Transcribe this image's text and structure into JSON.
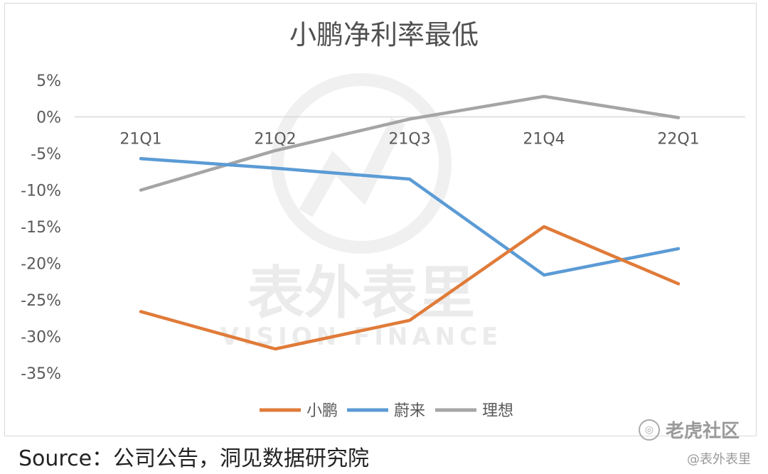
{
  "chart_data": {
    "type": "line",
    "title": "小鹏净利率最低",
    "categories": [
      "21Q1",
      "21Q2",
      "21Q3",
      "21Q4",
      "22Q1"
    ],
    "series": [
      {
        "name": "小鹏",
        "color": "#e07b39",
        "values": [
          -26.6,
          -31.7,
          -27.8,
          -15.0,
          -22.8
        ]
      },
      {
        "name": "蔚来",
        "color": "#5b9bd5",
        "values": [
          -5.7,
          -7.0,
          -8.5,
          -21.6,
          -18.0
        ]
      },
      {
        "name": "理想",
        "color": "#a5a5a5",
        "values": [
          -10.0,
          -4.6,
          -0.3,
          2.8,
          -0.1
        ]
      }
    ],
    "yticks": [
      "5%",
      "0%",
      "-5%",
      "-10%",
      "-15%",
      "-20%",
      "-25%",
      "-30%",
      "-35%"
    ],
    "ylim": [
      -35,
      5
    ],
    "grid": false,
    "legend_position": "bottom"
  },
  "source_text": "Source：公司公告，洞见数据研究院",
  "watermark": {
    "center_cn": "表外表里",
    "center_en": "VISION FINANCE",
    "brand": "老虎社区",
    "handle": "@表外表里"
  }
}
